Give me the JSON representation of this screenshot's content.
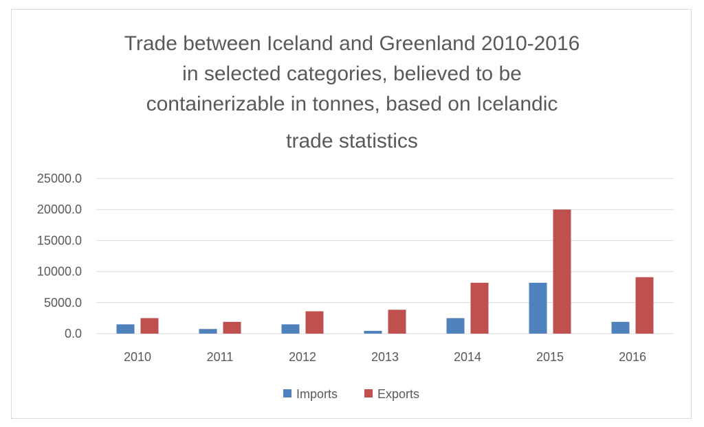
{
  "chart_data": {
    "type": "bar",
    "title_lines": [
      "Trade between Iceland and Greenland 2010-2016",
      "in selected categories, believed to be",
      "containerizable in tonnes, based on Icelandic",
      "trade statistics"
    ],
    "categories": [
      "2010",
      "2011",
      "2012",
      "2013",
      "2014",
      "2015",
      "2016"
    ],
    "series": [
      {
        "name": "Imports",
        "color": "#4f81bd",
        "values": [
          1500,
          750,
          1500,
          450,
          2500,
          8200,
          1900
        ]
      },
      {
        "name": "Exports",
        "color": "#c0504d",
        "values": [
          2500,
          1900,
          3600,
          3850,
          8200,
          20000,
          9100
        ]
      }
    ],
    "ylim": [
      0,
      25000
    ],
    "yticks": [
      "0.0",
      "5000.0",
      "10000.0",
      "15000.0",
      "20000.0",
      "25000.0"
    ],
    "ytick_values": [
      0,
      5000,
      10000,
      15000,
      20000,
      25000
    ],
    "grid": true,
    "legend_position": "bottom"
  }
}
